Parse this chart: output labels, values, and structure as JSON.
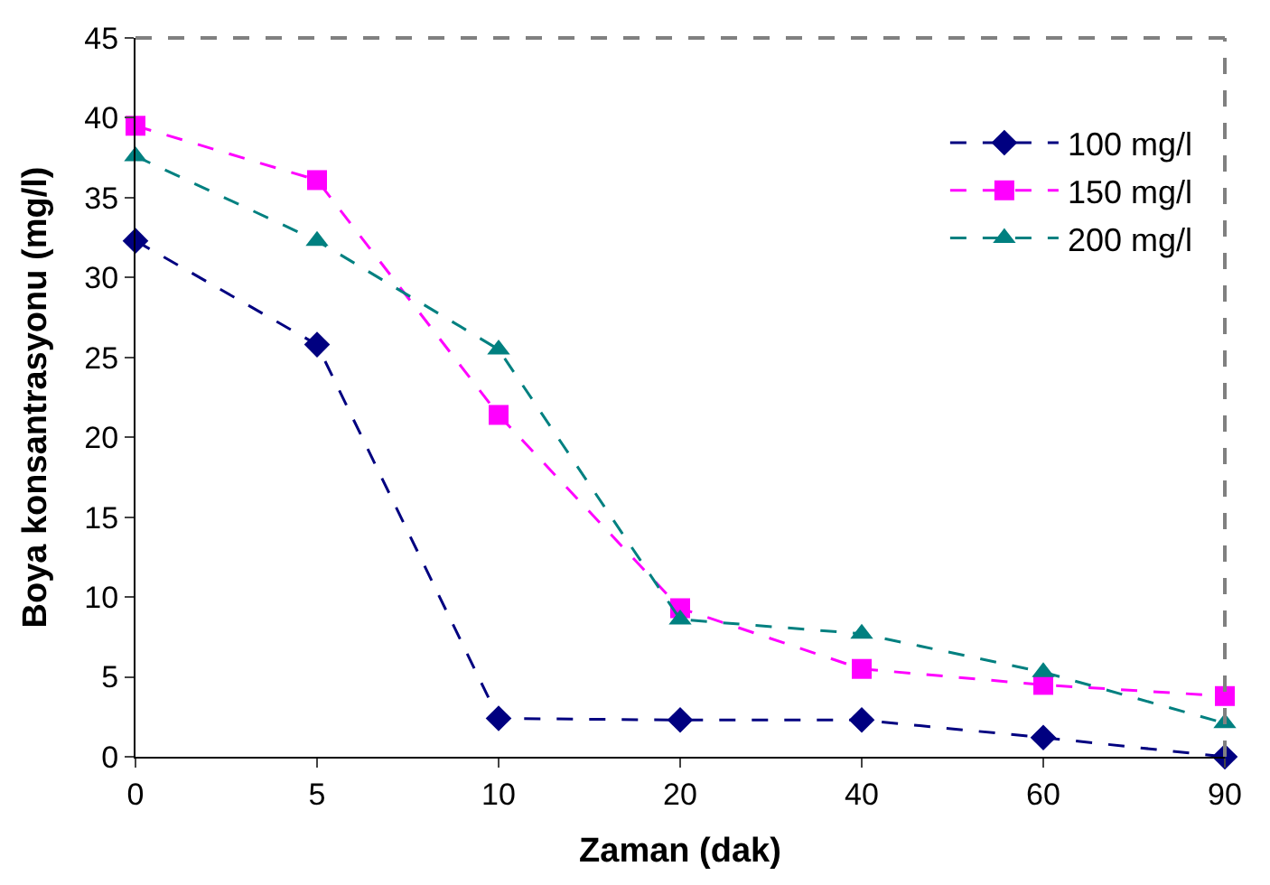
{
  "chart_data": {
    "type": "line",
    "xlabel": "Zaman (dak)",
    "ylabel": "Boya konsantrasyonu (mg/l)",
    "categories": [
      "0",
      "5",
      "10",
      "20",
      "40",
      "60",
      "90"
    ],
    "series": [
      {
        "name": "100 mg/l",
        "color": "#000080",
        "marker": "diamond",
        "values": [
          32.3,
          25.8,
          2.4,
          2.3,
          2.3,
          1.2,
          0
        ]
      },
      {
        "name": "150 mg/l",
        "color": "#ff00ff",
        "marker": "square",
        "values": [
          39.5,
          36.1,
          21.4,
          9.3,
          5.5,
          4.5,
          3.8
        ]
      },
      {
        "name": "200 mg/l",
        "color": "#008080",
        "marker": "triangle",
        "values": [
          37.6,
          32.3,
          25.5,
          8.6,
          7.7,
          5.3,
          2.1
        ]
      }
    ],
    "ylim": [
      0,
      45
    ],
    "yticks": [
      0,
      5,
      10,
      15,
      20,
      25,
      30,
      35,
      40,
      45
    ],
    "legend": "top right",
    "line_style": "dashed"
  }
}
